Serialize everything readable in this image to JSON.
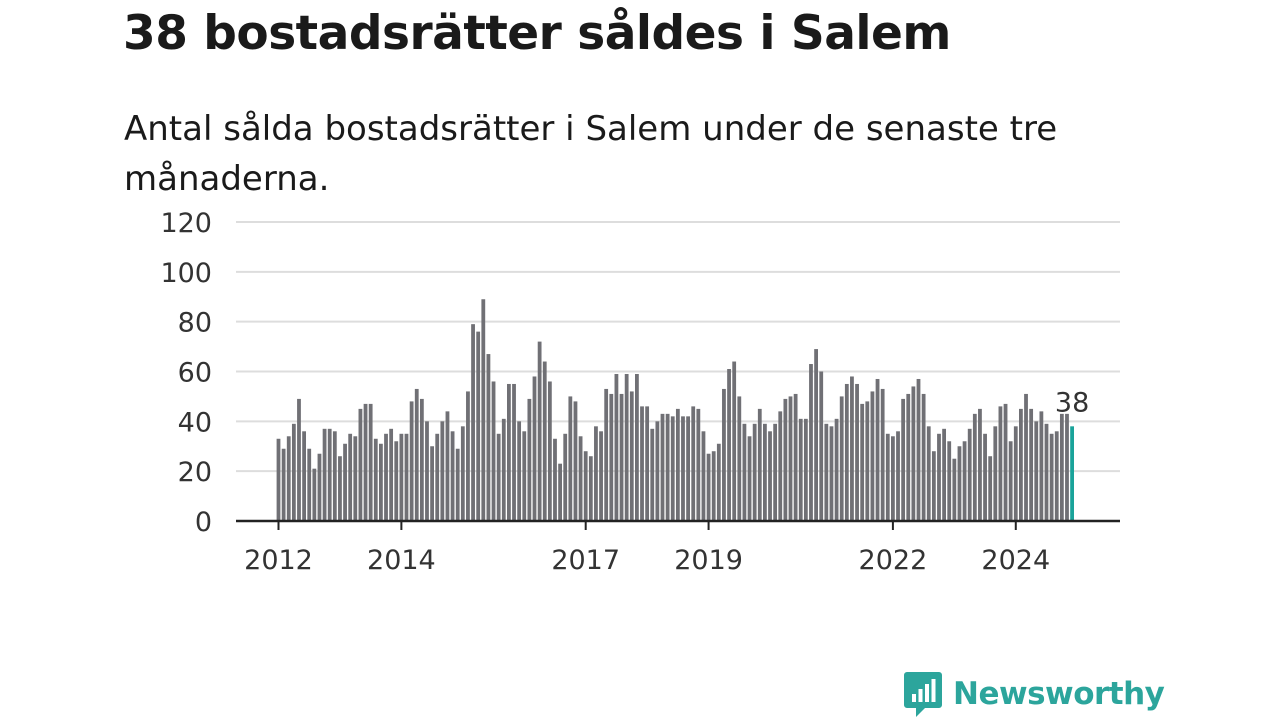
{
  "title": "38 bostadsrätter såldes i Salem",
  "subtitle": "Antal sålda bostadsrätter i Salem under de senaste tre månaderna.",
  "colors": {
    "bar": "#707075",
    "highlight": "#1aa39a",
    "grid": "#dddddd",
    "axis": "#222222",
    "brand": "#2ca59c"
  },
  "brand": {
    "name": "Newsworthy",
    "icon": "bar-chart-speech-bubble-icon"
  },
  "chart_data": {
    "type": "bar",
    "title": "38 bostadsrätter såldes i Salem",
    "subtitle": "Antal sålda bostadsrätter i Salem under de senaste tre månaderna.",
    "xlabel": "",
    "ylabel": "",
    "ylim": [
      0,
      120
    ],
    "yticks": [
      0,
      20,
      40,
      60,
      80,
      100,
      120
    ],
    "xticks": [
      "2012",
      "2014",
      "2017",
      "2019",
      "2022",
      "2024"
    ],
    "xtick_month_index": [
      0,
      24,
      60,
      84,
      120,
      144
    ],
    "grid": true,
    "legend": "none",
    "start_month": "2012-01",
    "frequency": "monthly",
    "series": [
      {
        "values": [
          33,
          29,
          34,
          39,
          49,
          36,
          29,
          21,
          27,
          37,
          37,
          36,
          26,
          31,
          35,
          34,
          45,
          47,
          47,
          33,
          31,
          35,
          37,
          32,
          35,
          35,
          48,
          53,
          49,
          40,
          30,
          35,
          40,
          44,
          36,
          29,
          38,
          52,
          79,
          76,
          89,
          67,
          56,
          35,
          41,
          55,
          55,
          40,
          36,
          49,
          58,
          72,
          64,
          56,
          33,
          23,
          35,
          50,
          48,
          34,
          28,
          26,
          38,
          36,
          53,
          51,
          59,
          51,
          59,
          52,
          59,
          46,
          46,
          37,
          40,
          43,
          43,
          42,
          45,
          42,
          42,
          46,
          45,
          36,
          27,
          28,
          31,
          53,
          61,
          64,
          50,
          39,
          34,
          39,
          45,
          39,
          36,
          39,
          44,
          49,
          50,
          51,
          41,
          41,
          63,
          69,
          60,
          39,
          38,
          41,
          50,
          55,
          58,
          55,
          47,
          48,
          52,
          57,
          53,
          35,
          34,
          36,
          49,
          51,
          54,
          57,
          51,
          38,
          28,
          35,
          37,
          32,
          25,
          30,
          32,
          37,
          43,
          45,
          35,
          26,
          38,
          46,
          47,
          32,
          38,
          45,
          51,
          45,
          40,
          44,
          39,
          35,
          36,
          43,
          43,
          38
        ]
      }
    ],
    "annotation": {
      "label": "38",
      "month_index": 155,
      "value": 38
    }
  }
}
